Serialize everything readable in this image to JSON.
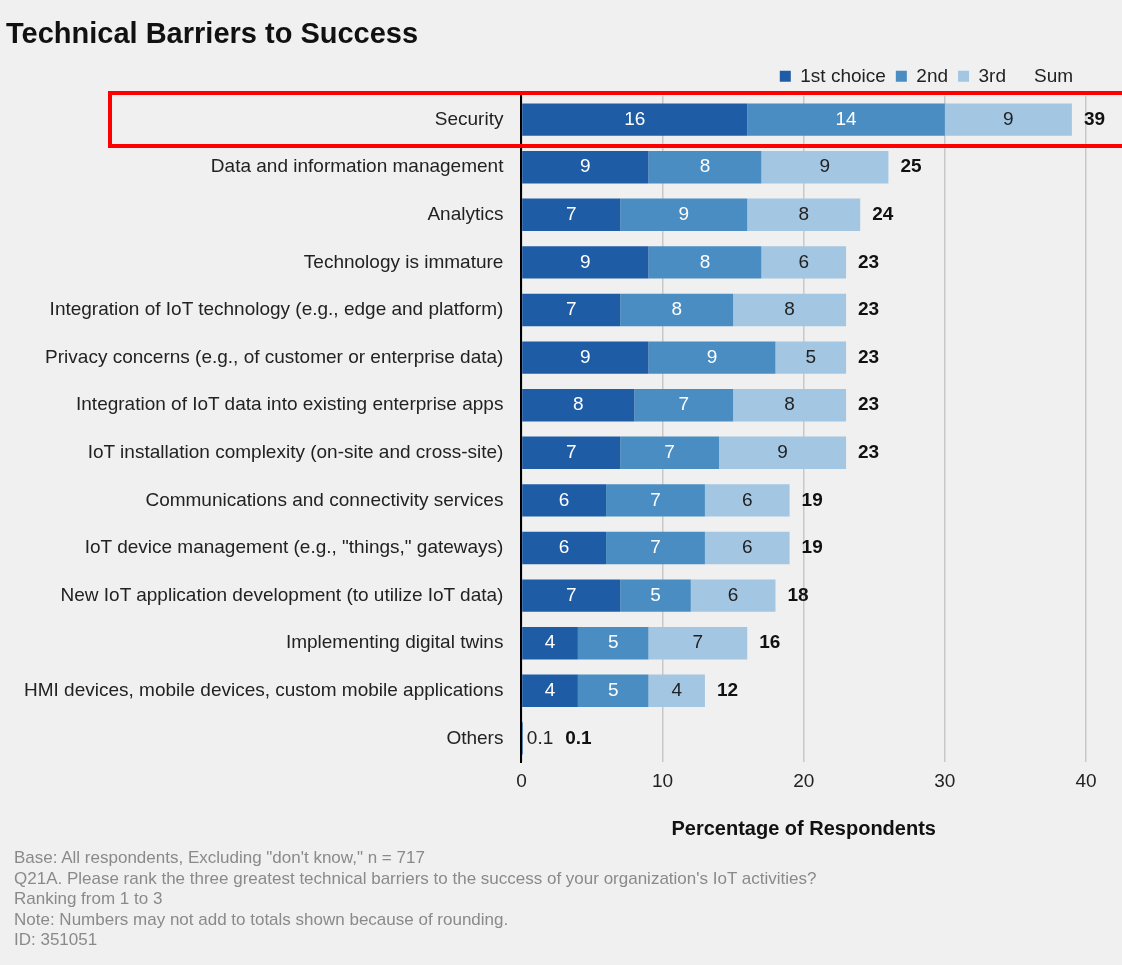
{
  "chart_data": {
    "type": "bar",
    "orientation": "horizontal",
    "stacked": true,
    "title": "Technical Barriers to Success",
    "xlabel": "Percentage of Respondents",
    "categories": [
      "Security",
      "Data and information management",
      "Analytics",
      "Technology is immature",
      "Integration of IoT technology (e.g., edge and platform)",
      "Privacy concerns (e.g., of customer or enterprise data)",
      "Integration of IoT data into existing enterprise apps",
      "IoT installation complexity (on-site and cross-site)",
      "Communications and connectivity services",
      "IoT device management (e.g., \"things,\" gateways)",
      "New IoT application development (to utilize IoT data)",
      "Implementing digital twins",
      "HMI devices, mobile devices, custom mobile applications",
      "Others"
    ],
    "series": [
      {
        "name": "1st choice",
        "color": "#1f5ca6",
        "values": [
          16,
          9,
          7,
          9,
          7,
          9,
          8,
          7,
          6,
          6,
          7,
          4,
          4,
          0.1
        ]
      },
      {
        "name": "2nd",
        "color": "#4a8dc2",
        "values": [
          14,
          8,
          9,
          8,
          8,
          9,
          7,
          7,
          7,
          7,
          5,
          5,
          5,
          null
        ]
      },
      {
        "name": "3rd",
        "color": "#a3c6e3",
        "values": [
          9,
          9,
          8,
          6,
          8,
          5,
          8,
          9,
          6,
          6,
          6,
          7,
          4,
          null
        ]
      }
    ],
    "data_labels": true,
    "totals": [
      "39",
      "25",
      "24",
      "23",
      "23",
      "23",
      "23",
      "23",
      "19",
      "19",
      "18",
      "16",
      "12",
      "0.1"
    ],
    "xlim": [
      0,
      40
    ],
    "xticks": [
      0,
      10,
      20,
      30,
      40
    ],
    "grid": "x",
    "legend": "top right",
    "annotations": [
      "Sum",
      "Base: All respondents, Excluding \"don't know,\" n = 717",
      "Q21A. Please rank the three greatest technical barriers to the success of your organization's IoT activities?",
      "Ranking from 1 to 3",
      "Note: Numbers may not add to totals shown because of rounding.",
      "ID: 351051"
    ]
  }
}
